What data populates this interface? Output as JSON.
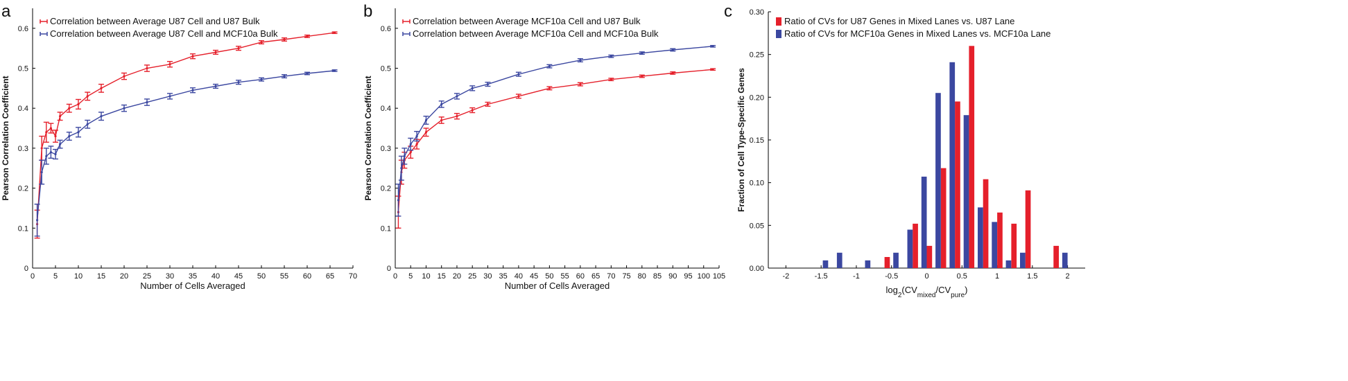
{
  "colors": {
    "red": "#e5202b",
    "blue": "#3b47a0",
    "axis": "#000000"
  },
  "panels": [
    {
      "letter": "a",
      "series_labels": [
        "Correlation between Average U87 Cell and U87 Bulk",
        "Correlation between Average U87 Cell and MCF10a Bulk"
      ]
    },
    {
      "letter": "b",
      "series_labels": [
        "Correlation between Average MCF10a Cell and U87 Bulk",
        "Correlation between Average MCF10a Cell and MCF10a Bulk"
      ]
    },
    {
      "letter": "c",
      "series_labels": [
        "Ratio of CVs for U87 Genes in Mixed Lanes vs. U87 Lane",
        "Ratio of CVs for MCF10a Genes in Mixed Lanes vs. MCF10a Lane"
      ]
    }
  ],
  "chart_data": [
    {
      "type": "line",
      "panel": "a",
      "xlabel": "Number of Cells Averaged",
      "ylabel": "Pearson Correlation Coefficient",
      "xlim": [
        0,
        70
      ],
      "ylim": [
        0,
        0.65
      ],
      "xticks": [
        0,
        5,
        10,
        15,
        20,
        25,
        30,
        35,
        40,
        45,
        50,
        55,
        60,
        65,
        70
      ],
      "yticks": [
        0,
        0.1,
        0.2,
        0.3,
        0.4,
        0.5,
        0.6
      ],
      "legend": "top-left",
      "series": [
        {
          "name": "Correlation between Average U87 Cell and U87 Bulk",
          "color": "red",
          "points": [
            [
              1,
              0.11,
              0.035
            ],
            [
              2,
              0.3,
              0.03
            ],
            [
              3,
              0.34,
              0.025
            ],
            [
              4,
              0.35,
              0.012
            ],
            [
              5,
              0.33,
              0.015
            ],
            [
              6,
              0.38,
              0.01
            ],
            [
              8,
              0.4,
              0.01
            ],
            [
              10,
              0.41,
              0.012
            ],
            [
              12,
              0.43,
              0.01
            ],
            [
              15,
              0.45,
              0.01
            ],
            [
              20,
              0.48,
              0.008
            ],
            [
              25,
              0.5,
              0.008
            ],
            [
              30,
              0.51,
              0.007
            ],
            [
              35,
              0.53,
              0.006
            ],
            [
              40,
              0.54,
              0.005
            ],
            [
              45,
              0.55,
              0.005
            ],
            [
              50,
              0.565,
              0.004
            ],
            [
              55,
              0.572,
              0.004
            ],
            [
              60,
              0.58,
              0.003
            ],
            [
              66,
              0.589,
              0.002
            ]
          ]
        },
        {
          "name": "Correlation between Average U87 Cell and MCF10a Bulk",
          "color": "blue",
          "points": [
            [
              1,
              0.12,
              0.04
            ],
            [
              2,
              0.24,
              0.03
            ],
            [
              3,
              0.28,
              0.02
            ],
            [
              4,
              0.29,
              0.015
            ],
            [
              5,
              0.285,
              0.012
            ],
            [
              6,
              0.31,
              0.01
            ],
            [
              8,
              0.33,
              0.01
            ],
            [
              10,
              0.34,
              0.012
            ],
            [
              12,
              0.36,
              0.01
            ],
            [
              15,
              0.38,
              0.01
            ],
            [
              20,
              0.4,
              0.008
            ],
            [
              25,
              0.415,
              0.008
            ],
            [
              30,
              0.43,
              0.007
            ],
            [
              35,
              0.445,
              0.006
            ],
            [
              40,
              0.455,
              0.005
            ],
            [
              45,
              0.465,
              0.005
            ],
            [
              50,
              0.472,
              0.004
            ],
            [
              55,
              0.48,
              0.004
            ],
            [
              60,
              0.487,
              0.003
            ],
            [
              66,
              0.494,
              0.002
            ]
          ]
        }
      ]
    },
    {
      "type": "line",
      "panel": "b",
      "xlabel": "Number of Cells Averaged",
      "ylabel": "Pearson Correlation Coefficient",
      "xlim": [
        0,
        105
      ],
      "ylim": [
        0,
        0.65
      ],
      "xticks": [
        0,
        5,
        10,
        15,
        20,
        25,
        30,
        35,
        40,
        45,
        50,
        55,
        60,
        65,
        70,
        75,
        80,
        85,
        90,
        95,
        100,
        105
      ],
      "yticks": [
        0,
        0.1,
        0.2,
        0.3,
        0.4,
        0.5,
        0.6
      ],
      "legend": "top-left",
      "series": [
        {
          "name": "Correlation between Average MCF10a Cell and U87 Bulk",
          "color": "red",
          "points": [
            [
              1,
              0.14,
              0.04
            ],
            [
              2,
              0.24,
              0.03
            ],
            [
              3,
              0.27,
              0.02
            ],
            [
              5,
              0.29,
              0.015
            ],
            [
              7,
              0.31,
              0.012
            ],
            [
              10,
              0.34,
              0.01
            ],
            [
              15,
              0.37,
              0.008
            ],
            [
              20,
              0.38,
              0.007
            ],
            [
              25,
              0.395,
              0.006
            ],
            [
              30,
              0.41,
              0.005
            ],
            [
              40,
              0.43,
              0.005
            ],
            [
              50,
              0.45,
              0.004
            ],
            [
              60,
              0.46,
              0.004
            ],
            [
              70,
              0.472,
              0.003
            ],
            [
              80,
              0.48,
              0.003
            ],
            [
              90,
              0.488,
              0.003
            ],
            [
              103,
              0.497,
              0.002
            ]
          ]
        },
        {
          "name": "Correlation between Average MCF10a Cell and MCF10a Bulk",
          "color": "blue",
          "points": [
            [
              1,
              0.17,
              0.04
            ],
            [
              2,
              0.25,
              0.03
            ],
            [
              3,
              0.28,
              0.02
            ],
            [
              5,
              0.31,
              0.015
            ],
            [
              7,
              0.33,
              0.012
            ],
            [
              10,
              0.37,
              0.01
            ],
            [
              15,
              0.41,
              0.008
            ],
            [
              20,
              0.43,
              0.007
            ],
            [
              25,
              0.45,
              0.006
            ],
            [
              30,
              0.46,
              0.005
            ],
            [
              40,
              0.485,
              0.005
            ],
            [
              50,
              0.505,
              0.004
            ],
            [
              60,
              0.52,
              0.004
            ],
            [
              70,
              0.53,
              0.003
            ],
            [
              80,
              0.538,
              0.003
            ],
            [
              90,
              0.546,
              0.003
            ],
            [
              103,
              0.555,
              0.002
            ]
          ]
        }
      ]
    },
    {
      "type": "bar",
      "panel": "c",
      "xlabel": "log",
      "xlabel_sub": "2",
      "xlabel_cv1": "(CV",
      "xlabel_sub1": "mixed",
      "xlabel_mid": "/CV",
      "xlabel_sub2": "pure",
      "xlabel_end": ")",
      "ylabel": "Fraction of Cell Type-Specific Genes",
      "xlim": [
        -2.25,
        2.25
      ],
      "ylim": [
        0,
        0.3
      ],
      "xticks": [
        -2,
        -1.5,
        -1,
        -0.5,
        0,
        0.5,
        1,
        1.5,
        2
      ],
      "yticks": [
        0,
        0.05,
        0.1,
        0.15,
        0.2,
        0.25,
        0.3
      ],
      "yticklabels": [
        "0.00",
        "0.05",
        "0.10",
        "0.15",
        "0.20",
        "0.25",
        "0.30"
      ],
      "legend": "top-right",
      "bin_centers": [
        -1.4,
        -1.2,
        -1.0,
        -0.8,
        -0.6,
        -0.4,
        -0.2,
        0.0,
        0.2,
        0.4,
        0.6,
        0.8,
        1.0,
        1.2,
        1.4,
        1.6,
        1.8,
        2.0
      ],
      "series": [
        {
          "name": "Ratio of CVs for U87 Genes in Mixed Lanes vs. U87 Lane",
          "color": "red",
          "values": [
            0,
            0,
            0,
            0,
            0.013,
            0,
            0.052,
            0.026,
            0.117,
            0.195,
            0.26,
            0.104,
            0.065,
            0.052,
            0.091,
            0,
            0.026,
            0
          ]
        },
        {
          "name": "Ratio of CVs for MCF10a Genes in Mixed Lanes vs. MCF10a Lane",
          "color": "blue",
          "values": [
            0.009,
            0.018,
            0,
            0.009,
            0,
            0.018,
            0.045,
            0.107,
            0.205,
            0.241,
            0.179,
            0.071,
            0.054,
            0.009,
            0.018,
            0,
            0,
            0.018
          ]
        }
      ]
    }
  ]
}
